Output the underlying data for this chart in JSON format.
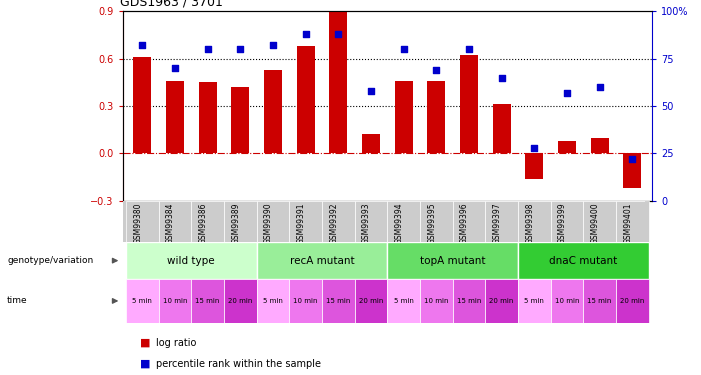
{
  "title": "GDS1963 / 3701",
  "samples": [
    "GSM99380",
    "GSM99384",
    "GSM99386",
    "GSM99389",
    "GSM99390",
    "GSM99391",
    "GSM99392",
    "GSM99393",
    "GSM99394",
    "GSM99395",
    "GSM99396",
    "GSM99397",
    "GSM99398",
    "GSM99399",
    "GSM99400",
    "GSM99401"
  ],
  "log_ratio": [
    0.61,
    0.46,
    0.45,
    0.42,
    0.53,
    0.68,
    0.9,
    0.12,
    0.46,
    0.46,
    0.62,
    0.31,
    -0.16,
    0.08,
    0.1,
    -0.22
  ],
  "percentile": [
    82,
    70,
    80,
    80,
    82,
    88,
    88,
    58,
    80,
    69,
    80,
    65,
    28,
    57,
    60,
    22
  ],
  "bar_color": "#cc0000",
  "dot_color": "#0000cc",
  "ylim_left": [
    -0.3,
    0.9
  ],
  "ylim_right": [
    0,
    100
  ],
  "yticks_left": [
    -0.3,
    0.0,
    0.3,
    0.6,
    0.9
  ],
  "yticks_right": [
    0,
    25,
    50,
    75,
    100
  ],
  "hlines": [
    0.0,
    0.3,
    0.6
  ],
  "hline_styles": [
    "dashdot",
    "dotted",
    "dotted"
  ],
  "hline_colors": [
    "#cc0000",
    "#000000",
    "#000000"
  ],
  "genotype_groups": [
    {
      "label": "wild type",
      "start": 0,
      "end": 4,
      "color": "#ccffcc"
    },
    {
      "label": "recA mutant",
      "start": 4,
      "end": 8,
      "color": "#99ee99"
    },
    {
      "label": "topA mutant",
      "start": 8,
      "end": 12,
      "color": "#66dd66"
    },
    {
      "label": "dnaC mutant",
      "start": 12,
      "end": 16,
      "color": "#33cc33"
    }
  ],
  "time_labels": [
    "5 min",
    "10 min",
    "15 min",
    "20 min",
    "5 min",
    "10 min",
    "15 min",
    "20 min",
    "5 min",
    "10 min",
    "15 min",
    "20 min",
    "5 min",
    "10 min",
    "15 min",
    "20 min"
  ],
  "time_colors": [
    "#ffaaff",
    "#ee77ee",
    "#dd55dd",
    "#cc33cc",
    "#ffaaff",
    "#ee77ee",
    "#dd55dd",
    "#cc33cc",
    "#ffaaff",
    "#ee77ee",
    "#dd55dd",
    "#cc33cc",
    "#ffaaff",
    "#ee77ee",
    "#dd55dd",
    "#cc33cc"
  ],
  "bg_color": "#ffffff",
  "samp_bg": "#cccccc"
}
